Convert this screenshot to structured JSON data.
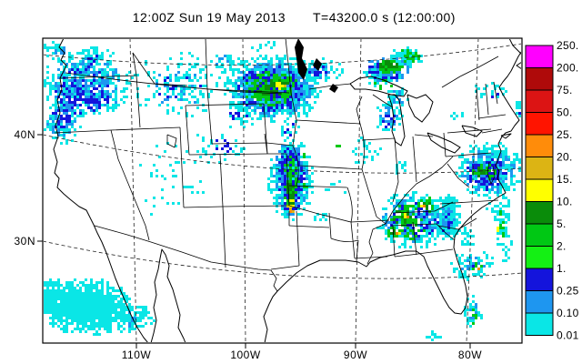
{
  "title": {
    "datetime": "12:00Z Sun 19 May 2013",
    "timer": "T=43200.0 s (12:00:00)"
  },
  "axes": {
    "lat_labels": [
      "40N",
      "30N"
    ],
    "lon_labels": [
      "110W",
      "100W",
      "90W",
      "80W"
    ]
  },
  "colorbar": {
    "edge_labels": [
      "250.",
      "200.",
      "75.",
      "50.",
      "25.",
      "20.",
      "15.",
      "10.",
      "5.",
      "2.",
      "1.",
      "0.25",
      "0.10",
      "0.01"
    ],
    "box_colors_top_to_bottom": [
      "#FF00FF",
      "#AF0A0A",
      "#DC1414",
      "#FF1400",
      "#FF8C0A",
      "#DCB414",
      "#FFFF00",
      "#0A8C0A",
      "#00C814",
      "#14F014",
      "#1414DC",
      "#1E96F0",
      "#0AE6E6"
    ]
  },
  "legend_semantics": {
    "units_note": "shaded precipitation intensity scale",
    "lowest_bin": "0.01",
    "highest_bin": "250."
  }
}
